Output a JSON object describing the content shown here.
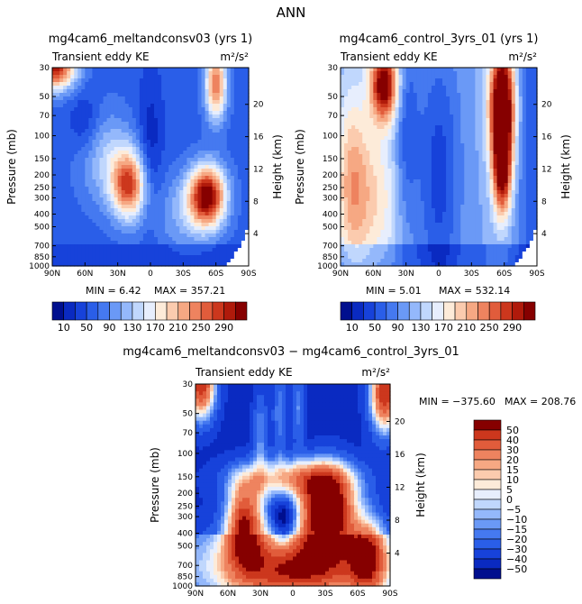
{
  "page_title": "ANN",
  "chart_data": [
    {
      "type": "heatmap",
      "title": "mg4cam6_meltandconsv03 (yrs 1)",
      "subtitle_left": "Transient eddy KE",
      "units": "m²/s²",
      "ylabel": "Pressure (mb)",
      "ylabel_right": "Height (km)",
      "x_ticks": [
        "90N",
        "60N",
        "30N",
        "0",
        "30S",
        "60S",
        "90S"
      ],
      "y_ticks": [
        "30",
        "50",
        "70",
        "100",
        "150",
        "200",
        "250",
        "300",
        "400",
        "500",
        "700",
        "850",
        "1000"
      ],
      "y2_ticks": [
        "20",
        "16",
        "12",
        "8",
        "4"
      ],
      "min_label": "MIN =   6.42",
      "max_label": "MAX = 357.21",
      "colorbar_labels": [
        "10",
        "50",
        "90",
        "130",
        "170",
        "210",
        "250",
        "290"
      ],
      "blobs": [
        {
          "lat": 75,
          "p": 30,
          "amp": 300,
          "note": "top-left corner max"
        },
        {
          "lat": 22,
          "p": 230,
          "amp": 260
        },
        {
          "lat": -50,
          "p": 280,
          "amp": 330
        },
        {
          "lat": -58,
          "p": 40,
          "amp": 230
        }
      ]
    },
    {
      "type": "heatmap",
      "title": "mg4cam6_control_3yrs_01 (yrs 1)",
      "subtitle_left": "Transient eddy KE",
      "units": "m²/s²",
      "ylabel": "Pressure (mb)",
      "ylabel_right": "Height (km)",
      "x_ticks": [
        "90N",
        "60N",
        "30N",
        "0",
        "30S",
        "60S",
        "90S"
      ],
      "y_ticks": [
        "30",
        "50",
        "70",
        "100",
        "150",
        "200",
        "250",
        "300",
        "400",
        "500",
        "700",
        "850",
        "1000"
      ],
      "y2_ticks": [
        "20",
        "16",
        "12",
        "8",
        "4"
      ],
      "min_label": "MIN =   5.01",
      "max_label": "MAX = 532.14",
      "colorbar_labels": [
        "10",
        "50",
        "90",
        "130",
        "170",
        "210",
        "250",
        "290"
      ],
      "blobs": [
        {
          "lat": 48,
          "p": 45,
          "amp": 300
        },
        {
          "lat": -58,
          "p": 50,
          "amp": 520
        }
      ]
    },
    {
      "type": "heatmap",
      "title": "mg4cam6_meltandconsv03 − mg4cam6_control_3yrs_01",
      "subtitle_left": "Transient eddy KE",
      "units": "m²/s²",
      "ylabel": "Pressure (mb)",
      "ylabel_right": "Height (km)",
      "x_ticks": [
        "90N",
        "60N",
        "30N",
        "0",
        "30S",
        "60S",
        "90S"
      ],
      "y_ticks": [
        "30",
        "50",
        "70",
        "100",
        "150",
        "200",
        "250",
        "300",
        "400",
        "500",
        "700",
        "850",
        "1000"
      ],
      "y2_ticks": [
        "20",
        "16",
        "12",
        "8",
        "4"
      ],
      "min_label": "MIN = −375.60",
      "max_label": "MAX = 208.76",
      "colorbar_labels": [
        "50",
        "40",
        "30",
        "20",
        "15",
        "10",
        "5",
        "0",
        "−5",
        "−10",
        "−15",
        "−20",
        "−30",
        "−40",
        "−50"
      ]
    }
  ],
  "colors": {
    "seq_palette": [
      "#000f8e",
      "#0a2ac1",
      "#1742da",
      "#2a5ee8",
      "#4579f0",
      "#6a99f6",
      "#94b8fb",
      "#c0d7fd",
      "#e7eefd",
      "#fdebd9",
      "#fbcbae",
      "#f6a883",
      "#ee835f",
      "#e15c3b",
      "#cc371d",
      "#b01a0b",
      "#860000"
    ],
    "div_palette": [
      "#000f8e",
      "#0a2ac1",
      "#1742da",
      "#2a5ee8",
      "#4579f0",
      "#6a99f6",
      "#94b8fb",
      "#c0d7fd",
      "#e7eefd",
      "#fdebd9",
      "#fbcbae",
      "#f6a883",
      "#ee835f",
      "#e15c3b",
      "#cc371d",
      "#860000"
    ]
  }
}
